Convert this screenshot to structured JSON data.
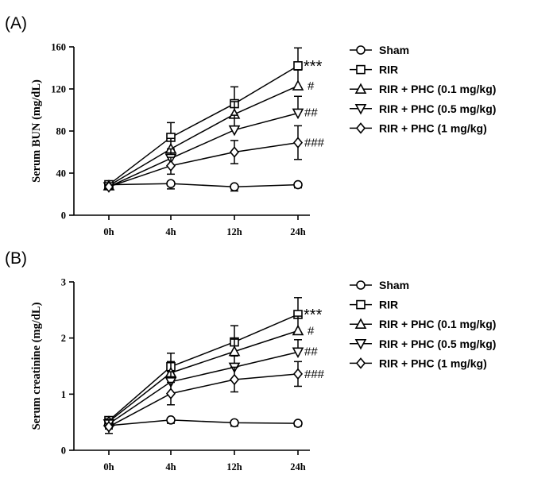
{
  "chart_data": [
    {
      "id": "a",
      "panel_label": "(A)",
      "type": "line",
      "title": "",
      "xlabel": "",
      "ylabel": "Serum BUN (mg/dL)",
      "categories": [
        "0h",
        "4h",
        "12h",
        "24h"
      ],
      "ylim": [
        0,
        160
      ],
      "yticks": [
        0,
        40,
        80,
        120,
        160
      ],
      "grid": false,
      "legend_position": "right",
      "series": [
        {
          "name": "Sham",
          "marker": "circle",
          "values": [
            29,
            30,
            27,
            29
          ],
          "err": [
            3,
            5,
            4,
            3
          ]
        },
        {
          "name": "RIR",
          "marker": "square",
          "values": [
            29,
            74,
            106,
            142
          ],
          "err": [
            2,
            14,
            16,
            17
          ]
        },
        {
          "name": "RIR + PHC (0.1 mg/kg)",
          "marker": "triangle-up",
          "values": [
            28,
            63,
            96,
            123
          ],
          "err": [
            2,
            10,
            12,
            15
          ]
        },
        {
          "name": "RIR + PHC (0.5 mg/kg)",
          "marker": "triangle-down",
          "values": [
            27,
            54,
            81,
            97
          ],
          "err": [
            2,
            9,
            14,
            16
          ]
        },
        {
          "name": "RIR + PHC (1 mg/kg)",
          "marker": "diamond",
          "values": [
            27,
            47,
            60,
            69
          ],
          "err": [
            2,
            8,
            11,
            16
          ]
        }
      ],
      "annotations": [
        "***",
        "#",
        "##",
        "###"
      ]
    },
    {
      "id": "b",
      "panel_label": "(B)",
      "type": "line",
      "title": "",
      "xlabel": "",
      "ylabel": "Serum creatinine (mg/dL)",
      "categories": [
        "0h",
        "4h",
        "12h",
        "24h"
      ],
      "ylim": [
        0,
        3
      ],
      "yticks": [
        0,
        1,
        2,
        3
      ],
      "grid": false,
      "legend_position": "right",
      "series": [
        {
          "name": "Sham",
          "marker": "circle",
          "values": [
            0.44,
            0.54,
            0.49,
            0.48
          ],
          "err": [
            0.06,
            0.06,
            0.06,
            0.05
          ]
        },
        {
          "name": "RIR",
          "marker": "square",
          "values": [
            0.53,
            1.49,
            1.93,
            2.42
          ],
          "err": [
            0.05,
            0.24,
            0.29,
            0.3
          ]
        },
        {
          "name": "RIR + PHC (0.1 mg/kg)",
          "marker": "triangle-up",
          "values": [
            0.51,
            1.38,
            1.76,
            2.13
          ],
          "err": [
            0.05,
            0.2,
            0.22,
            0.26
          ]
        },
        {
          "name": "RIR + PHC (0.5 mg/kg)",
          "marker": "triangle-down",
          "values": [
            0.47,
            1.22,
            1.48,
            1.75
          ],
          "err": [
            0.05,
            0.18,
            0.2,
            0.22
          ]
        },
        {
          "name": "RIR + PHC (1 mg/kg)",
          "marker": "diamond",
          "values": [
            0.42,
            1.01,
            1.26,
            1.36
          ],
          "err": [
            0.12,
            0.2,
            0.22,
            0.22
          ]
        }
      ],
      "annotations": [
        "***",
        "#",
        "##",
        "###"
      ]
    }
  ]
}
